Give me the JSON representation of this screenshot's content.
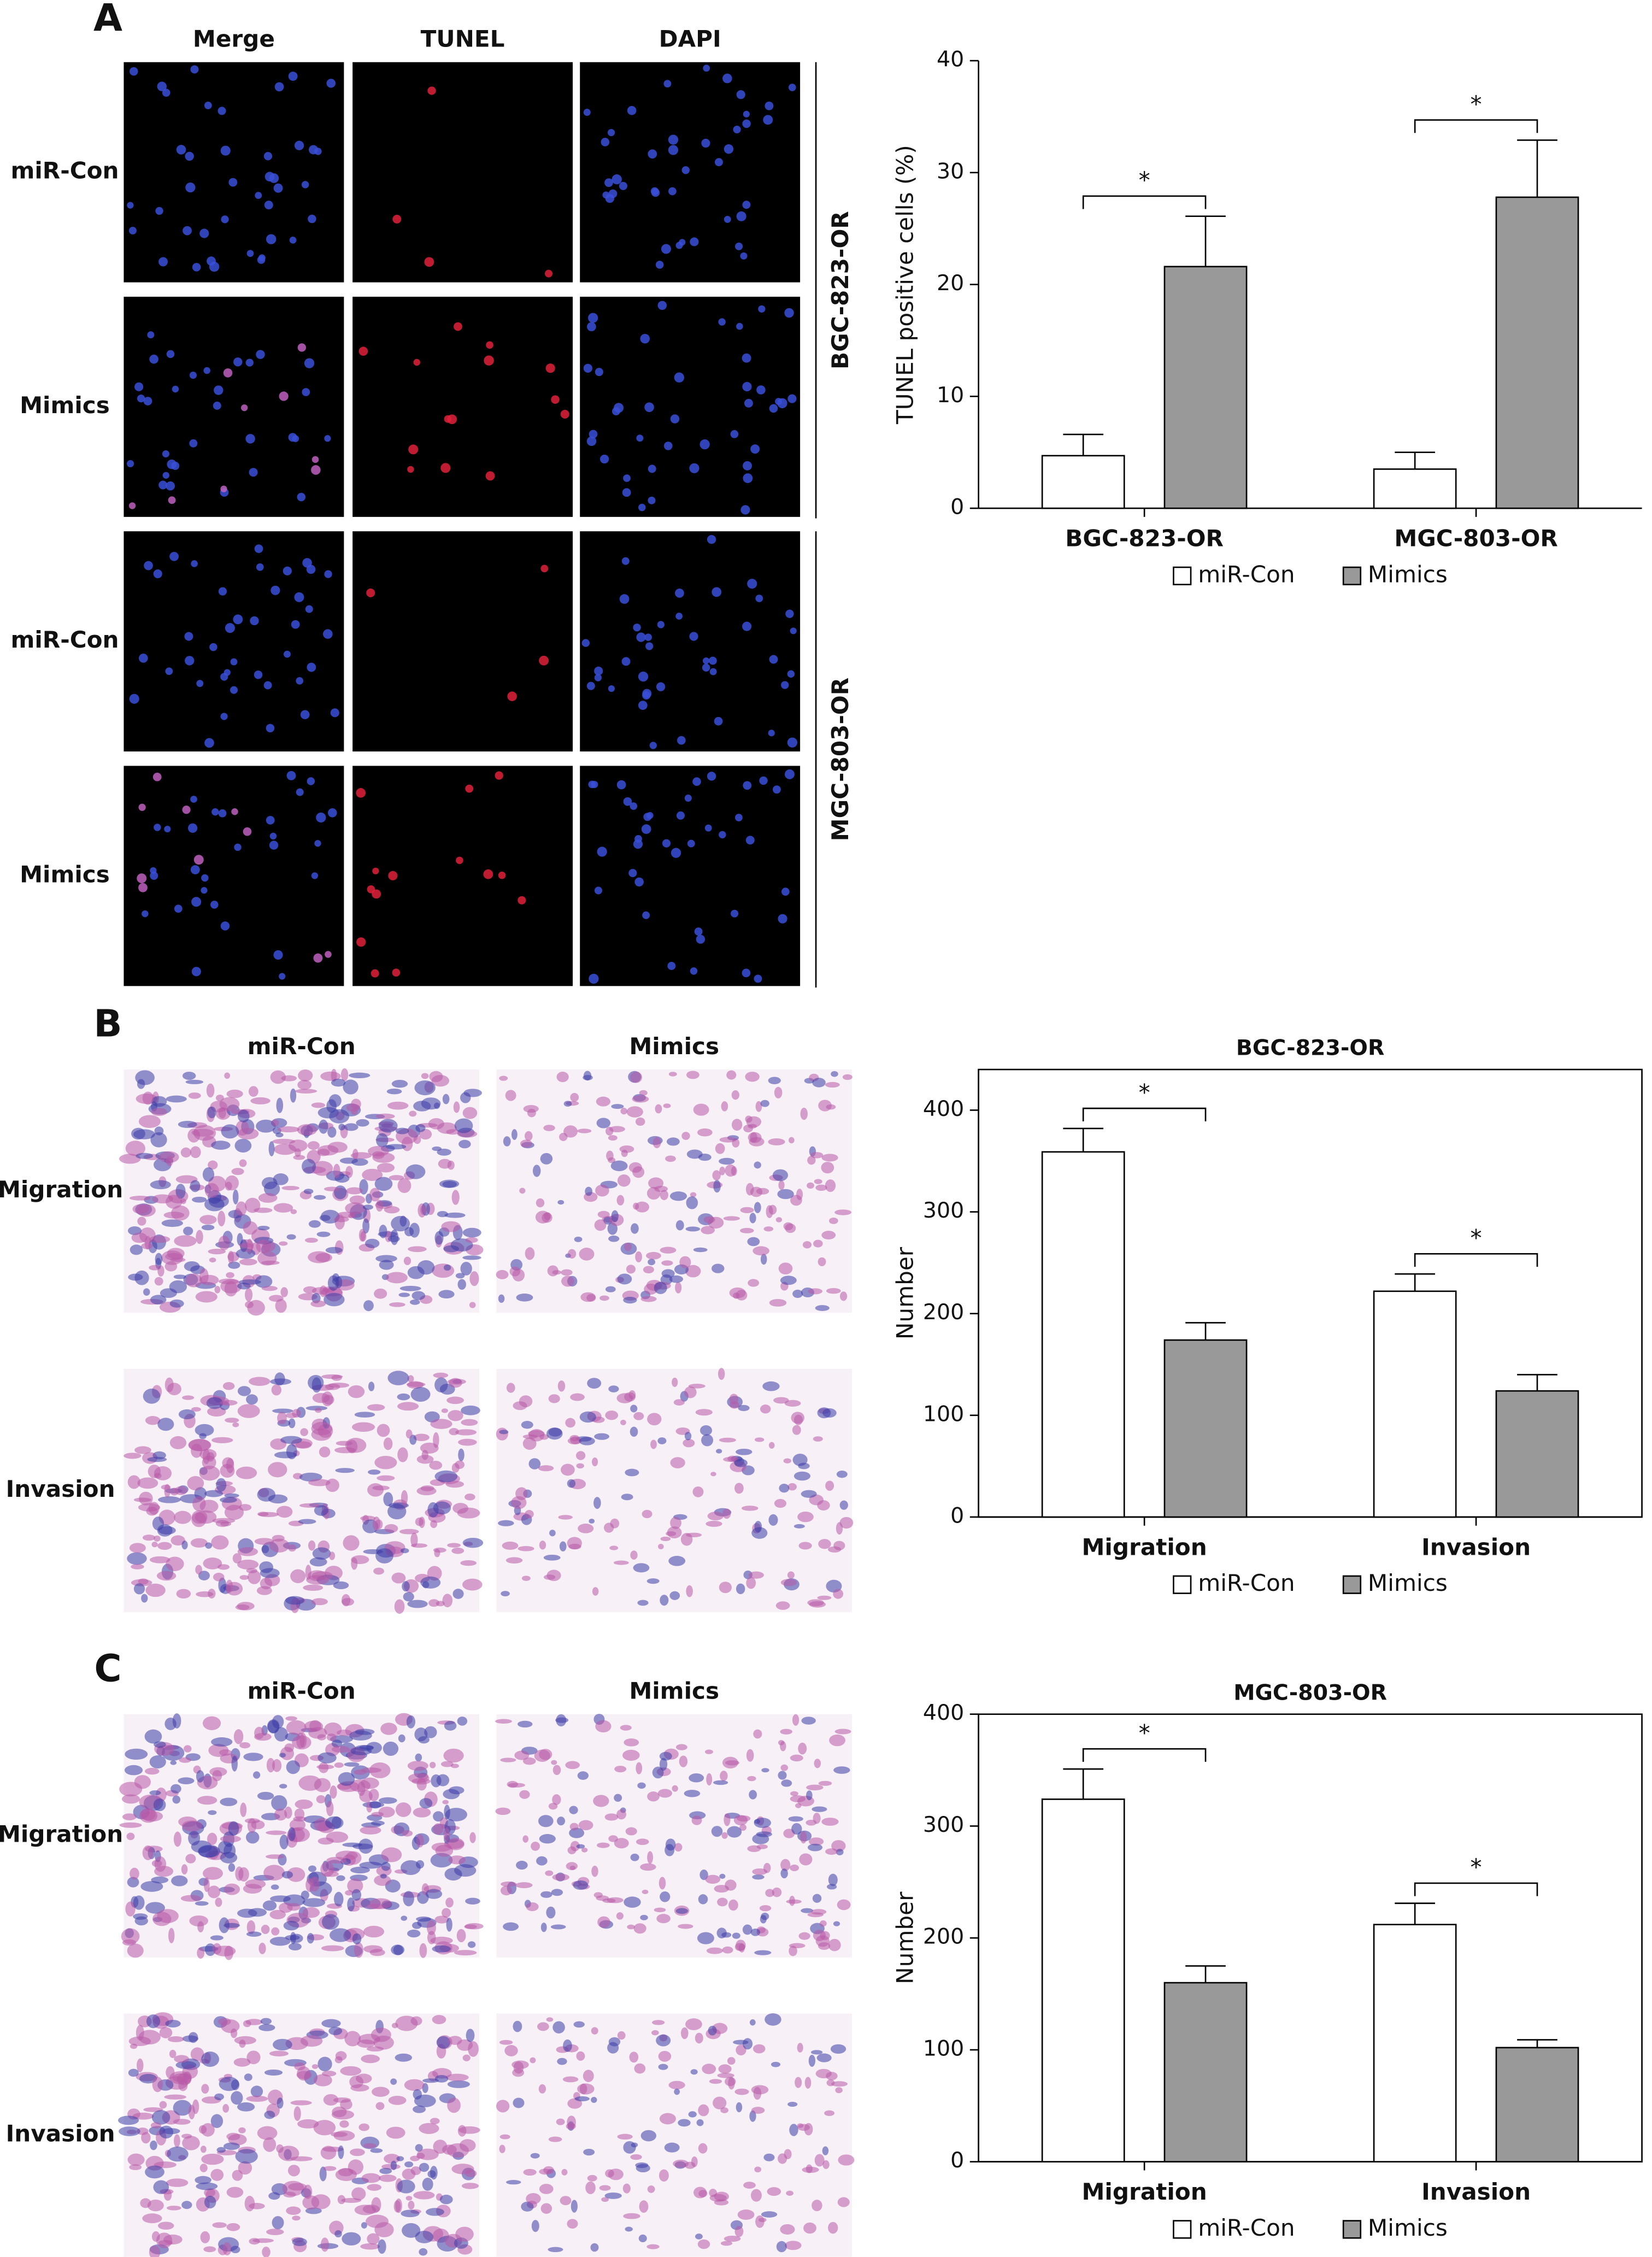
{
  "panels": {
    "A": {
      "letter": "A",
      "columns": [
        "Merge",
        "TUNEL",
        "DAPI"
      ],
      "rows": [
        "miR-Con",
        "Mimics",
        "miR-Con",
        "Mimics"
      ],
      "groups": [
        "BGC-823-OR",
        "MGC-803-OR"
      ]
    },
    "B": {
      "letter": "B",
      "columns": [
        "miR-Con",
        "Mimics"
      ],
      "rows": [
        "Migration",
        "Invasion"
      ]
    },
    "C": {
      "letter": "C",
      "columns": [
        "miR-Con",
        "Mimics"
      ],
      "rows": [
        "Migration",
        "Invasion"
      ]
    }
  },
  "chart_data": [
    {
      "type": "bar",
      "ylabel": "TUNEL positive cells (%)",
      "categories": [
        "BGC-823-OR",
        "MGC-803-OR"
      ],
      "series": [
        {
          "name": "miR-Con",
          "color": "#ffffff",
          "values": [
            4.7,
            3.5
          ],
          "errors": [
            1.9,
            1.5
          ]
        },
        {
          "name": "Mimics",
          "color": "#999999",
          "values": [
            21.6,
            27.8
          ],
          "errors": [
            4.5,
            5.1
          ]
        }
      ],
      "annotations": [
        "*",
        "*"
      ],
      "ylim": [
        0,
        40
      ],
      "yticks": [
        0,
        10,
        20,
        30,
        40
      ],
      "frame": false,
      "legend": "bottom"
    },
    {
      "type": "bar",
      "title": "BGC-823-OR",
      "ylabel": "Number",
      "categories": [
        "Migration",
        "Invasion"
      ],
      "series": [
        {
          "name": "miR-Con",
          "color": "#ffffff",
          "values": [
            359,
            222
          ],
          "errors": [
            23,
            17
          ]
        },
        {
          "name": "Mimics",
          "color": "#999999",
          "values": [
            174,
            124
          ],
          "errors": [
            17,
            16
          ]
        }
      ],
      "annotations": [
        "*",
        "*"
      ],
      "ylim": [
        0,
        440
      ],
      "yticks": [
        0,
        100,
        200,
        300,
        400
      ],
      "frame": true,
      "legend": "bottom"
    },
    {
      "type": "bar",
      "title": "MGC-803-OR",
      "ylabel": "Number",
      "categories": [
        "Migration",
        "Invasion"
      ],
      "series": [
        {
          "name": "miR-Con",
          "color": "#ffffff",
          "values": [
            324,
            212
          ],
          "errors": [
            27,
            19
          ]
        },
        {
          "name": "Mimics",
          "color": "#999999",
          "values": [
            160,
            102
          ],
          "errors": [
            15,
            7
          ]
        }
      ],
      "annotations": [
        "*",
        "*"
      ],
      "ylim": [
        0,
        400
      ],
      "yticks": [
        0,
        100,
        200,
        300,
        400
      ],
      "frame": true,
      "legend": "bottom"
    }
  ]
}
